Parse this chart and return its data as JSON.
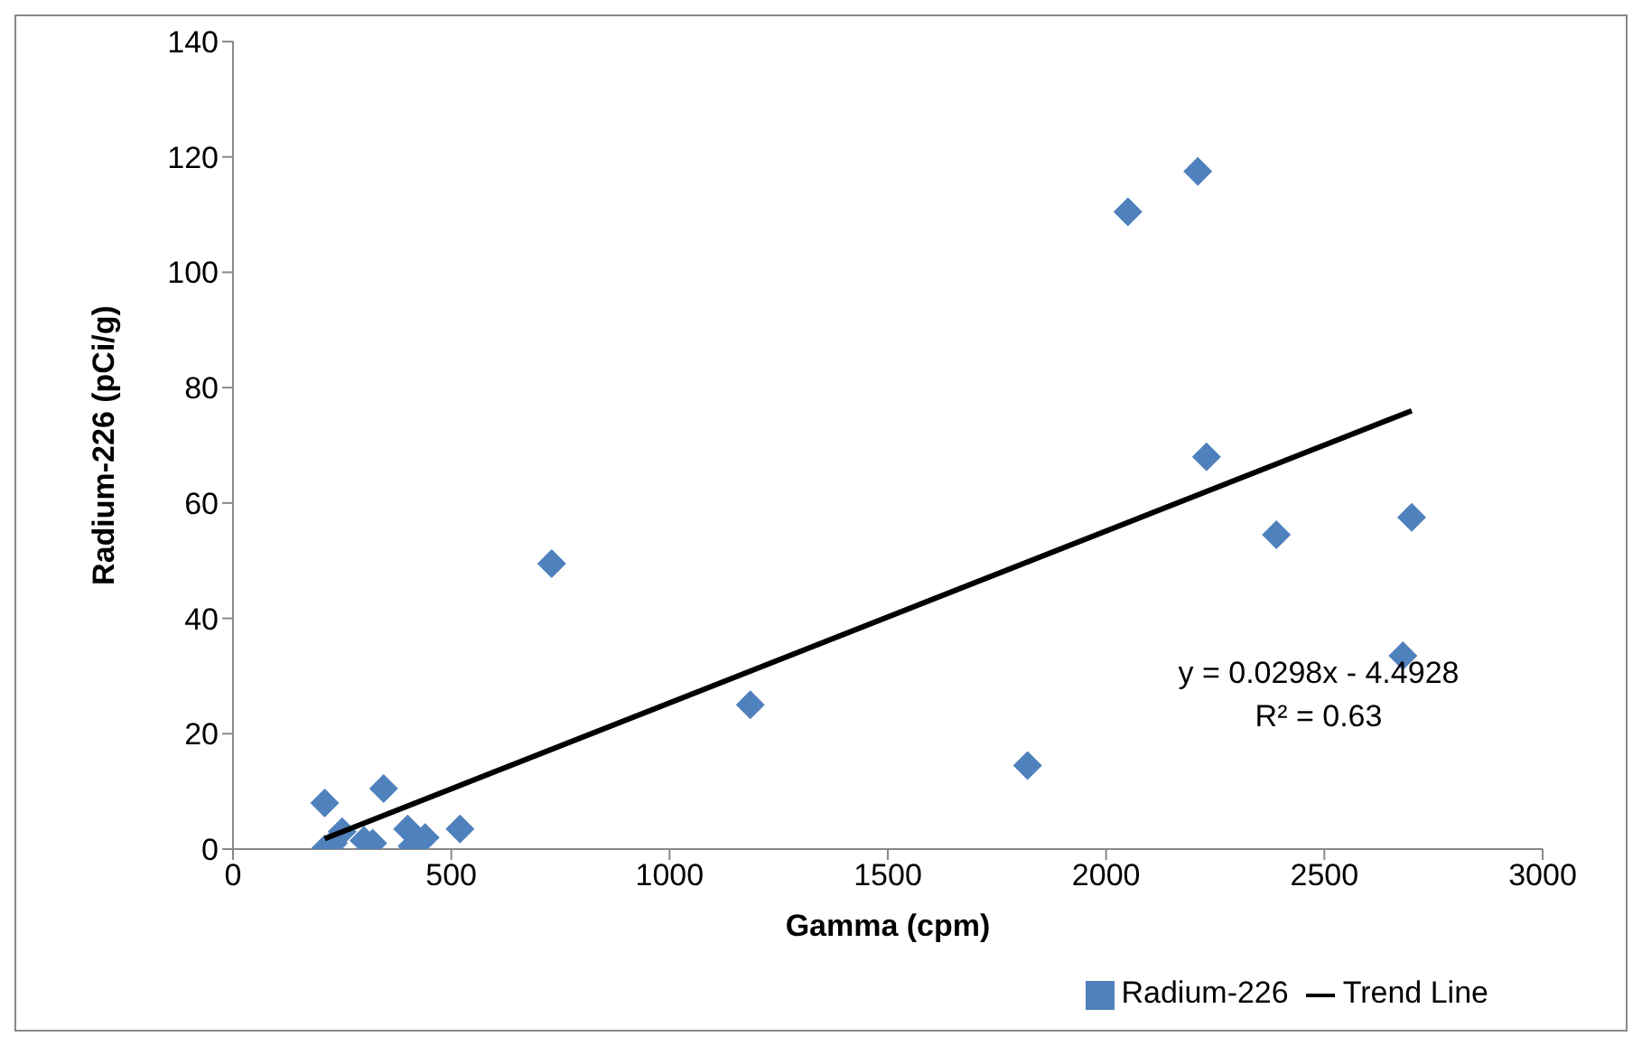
{
  "chart_data": {
    "type": "scatter",
    "xlabel": "Gamma (cpm)",
    "ylabel": "Radium-226 (pCi/g)",
    "xlim": [
      0,
      3000
    ],
    "xticks": [
      0,
      500,
      1000,
      1500,
      2000,
      2500,
      3000
    ],
    "ylim": [
      0,
      140
    ],
    "yticks": [
      0,
      20,
      40,
      60,
      80,
      100,
      120,
      140
    ],
    "grid": false,
    "legend": "bottom right",
    "annotations": [
      "y = 0.0298x - 4.4928",
      "R² = 0.63"
    ],
    "series": [
      {
        "name": "Radium-226",
        "color": "#4f81bd",
        "marker": "diamond",
        "x": [
          210,
          345,
          730,
          1185,
          1820,
          2050,
          2210,
          2230,
          2390,
          2680,
          2700,
          520,
          400,
          440,
          410,
          250,
          230,
          210,
          320,
          300
        ],
        "values": [
          8,
          10.5,
          49.5,
          25,
          14.5,
          110.5,
          117.5,
          68,
          54.5,
          33.5,
          57.5,
          3.5,
          3.5,
          2,
          0.5,
          3,
          1,
          0,
          1,
          1.5
        ]
      },
      {
        "name": "Trend Line",
        "type": "line",
        "color": "#000000",
        "line_style": "solid",
        "x": [
          210,
          2700
        ],
        "values": [
          1.8,
          76
        ]
      }
    ]
  }
}
